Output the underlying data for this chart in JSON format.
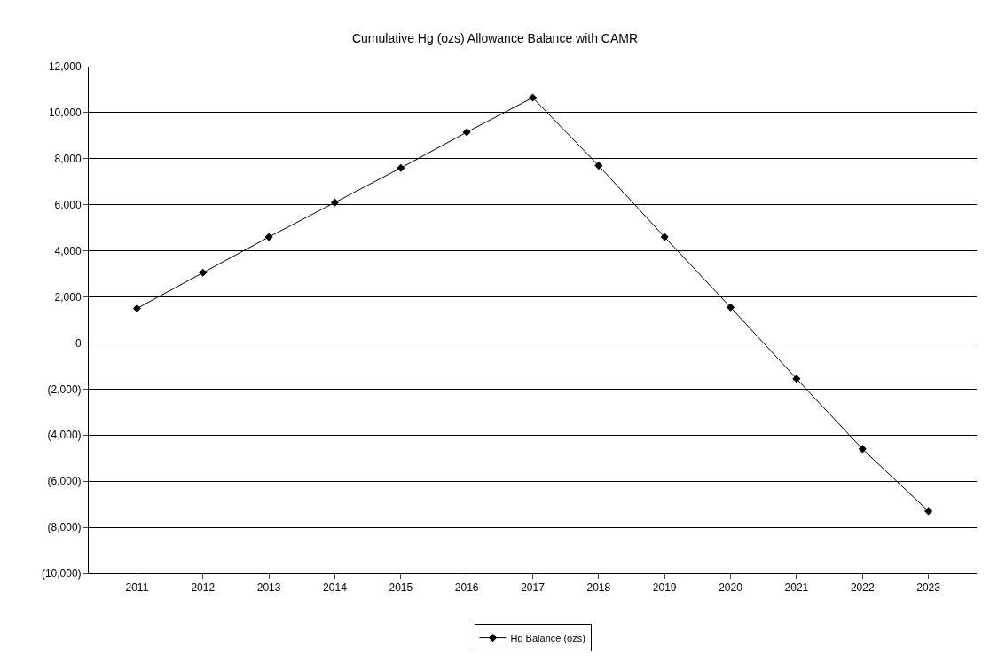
{
  "chart_data": {
    "type": "line",
    "title": "Cumulative Hg (ozs) Allowance Balance with CAMR",
    "categories": [
      "2011",
      "2012",
      "2013",
      "2014",
      "2015",
      "2016",
      "2017",
      "2018",
      "2019",
      "2020",
      "2021",
      "2022",
      "2023"
    ],
    "series": [
      {
        "name": "Hg Balance (ozs)",
        "color": "#000000",
        "values": [
          1500,
          3050,
          4600,
          6100,
          7600,
          9150,
          10650,
          7700,
          4600,
          1550,
          -1550,
          -4600,
          -7300
        ]
      }
    ],
    "ylim": [
      -10000,
      12000
    ],
    "yticks": [
      {
        "value": -10000,
        "label": "(10,000)"
      },
      {
        "value": -8000,
        "label": "(8,000)"
      },
      {
        "value": -6000,
        "label": "(6,000)"
      },
      {
        "value": -4000,
        "label": "(4,000)"
      },
      {
        "value": -2000,
        "label": "(2,000)"
      },
      0,
      {
        "value": 2000,
        "label": "2,000"
      },
      {
        "value": 4000,
        "label": "4,000"
      },
      {
        "value": 6000,
        "label": "6,000"
      },
      {
        "value": 8000,
        "label": "8,000"
      },
      {
        "value": 10000,
        "label": "10,000"
      },
      {
        "value": 12000,
        "label": "12,000"
      }
    ],
    "grid": "y",
    "legend": "bottom",
    "marker": "diamond",
    "line_style": "solid"
  }
}
